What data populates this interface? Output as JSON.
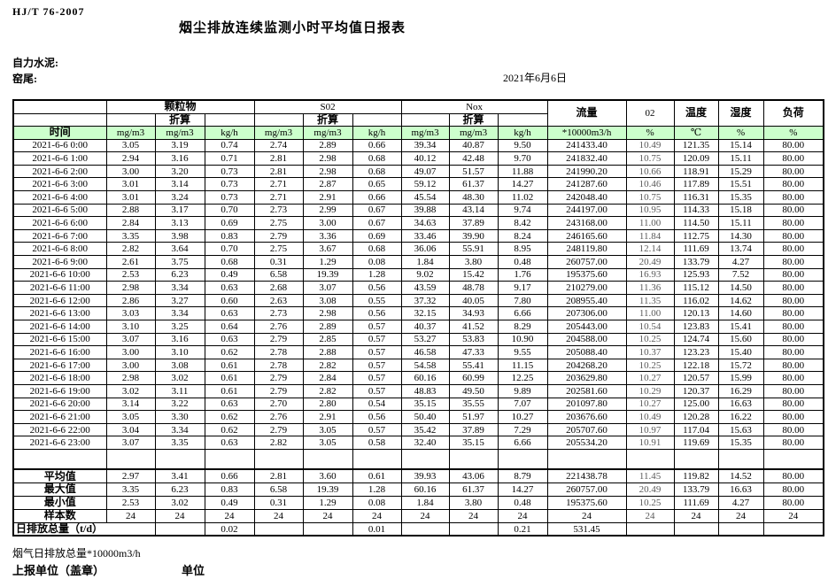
{
  "report": {
    "standard_code": "HJ/T 76-2007",
    "title": "烟尘排放连续监测小时平均值日报表",
    "company_label": "自力水泥:",
    "site_label": "窑尾:",
    "date": "2021年6月6日",
    "flue_gas_total_note": "烟气日排放总量*10000m3/h",
    "report_unit_label": "上报单位（盖章）",
    "unit_label": "单位"
  },
  "colors": {
    "header_green": "#ccffcc"
  },
  "table": {
    "time_header": "时间",
    "conversion_label": "折算",
    "group_headers": {
      "particulate": "颗粒物",
      "so2": "S02",
      "nox": "Nox",
      "flow": "流量",
      "o2": "02",
      "temperature": "温度",
      "humidity": "湿度",
      "load": "负荷"
    },
    "units": [
      "mg/m3",
      "mg/m3",
      "kg/h",
      "mg/m3",
      "mg/m3",
      "kg/h",
      "mg/m3",
      "mg/m3",
      "kg/h",
      "*10000m3/h",
      "%",
      "℃",
      "%",
      "%"
    ],
    "data_rows": [
      {
        "time": "2021-6-6 0:00",
        "values": [
          "3.05",
          "3.19",
          "0.74",
          "2.74",
          "2.89",
          "0.66",
          "39.34",
          "40.87",
          "9.50",
          "241433.40",
          "10.49",
          "121.35",
          "15.14",
          "80.00"
        ]
      },
      {
        "time": "2021-6-6 1:00",
        "values": [
          "2.94",
          "3.16",
          "0.71",
          "2.81",
          "2.98",
          "0.68",
          "40.12",
          "42.48",
          "9.70",
          "241832.40",
          "10.75",
          "120.09",
          "15.11",
          "80.00"
        ]
      },
      {
        "time": "2021-6-6 2:00",
        "values": [
          "3.00",
          "3.20",
          "0.73",
          "2.81",
          "2.98",
          "0.68",
          "49.07",
          "51.57",
          "11.88",
          "241990.20",
          "10.66",
          "118.91",
          "15.29",
          "80.00"
        ]
      },
      {
        "time": "2021-6-6 3:00",
        "values": [
          "3.01",
          "3.14",
          "0.73",
          "2.71",
          "2.87",
          "0.65",
          "59.12",
          "61.37",
          "14.27",
          "241287.60",
          "10.46",
          "117.89",
          "15.51",
          "80.00"
        ]
      },
      {
        "time": "2021-6-6 4:00",
        "values": [
          "3.01",
          "3.24",
          "0.73",
          "2.71",
          "2.91",
          "0.66",
          "45.54",
          "48.30",
          "11.02",
          "242048.40",
          "10.75",
          "116.31",
          "15.35",
          "80.00"
        ]
      },
      {
        "time": "2021-6-6 5:00",
        "values": [
          "2.88",
          "3.17",
          "0.70",
          "2.73",
          "2.99",
          "0.67",
          "39.88",
          "43.14",
          "9.74",
          "244197.00",
          "10.95",
          "114.33",
          "15.18",
          "80.00"
        ]
      },
      {
        "time": "2021-6-6 6:00",
        "values": [
          "2.84",
          "3.13",
          "0.69",
          "2.75",
          "3.00",
          "0.67",
          "34.63",
          "37.89",
          "8.42",
          "243168.00",
          "11.00",
          "114.50",
          "15.11",
          "80.00"
        ]
      },
      {
        "time": "2021-6-6 7:00",
        "values": [
          "3.35",
          "3.98",
          "0.83",
          "2.79",
          "3.36",
          "0.69",
          "33.46",
          "39.90",
          "8.24",
          "246165.60",
          "11.84",
          "112.75",
          "14.30",
          "80.00"
        ]
      },
      {
        "time": "2021-6-6 8:00",
        "values": [
          "2.82",
          "3.64",
          "0.70",
          "2.75",
          "3.67",
          "0.68",
          "36.06",
          "55.91",
          "8.95",
          "248119.80",
          "12.14",
          "111.69",
          "13.74",
          "80.00"
        ]
      },
      {
        "time": "2021-6-6 9:00",
        "values": [
          "2.61",
          "3.75",
          "0.68",
          "0.31",
          "1.29",
          "0.08",
          "1.84",
          "3.80",
          "0.48",
          "260757.00",
          "20.49",
          "133.79",
          "4.27",
          "80.00"
        ]
      },
      {
        "time": "2021-6-6 10:00",
        "values": [
          "2.53",
          "6.23",
          "0.49",
          "6.58",
          "19.39",
          "1.28",
          "9.02",
          "15.42",
          "1.76",
          "195375.60",
          "16.93",
          "125.93",
          "7.52",
          "80.00"
        ]
      },
      {
        "time": "2021-6-6 11:00",
        "values": [
          "2.98",
          "3.34",
          "0.63",
          "2.68",
          "3.07",
          "0.56",
          "43.59",
          "48.78",
          "9.17",
          "210279.00",
          "11.36",
          "115.12",
          "14.50",
          "80.00"
        ]
      },
      {
        "time": "2021-6-6 12:00",
        "values": [
          "2.86",
          "3.27",
          "0.60",
          "2.63",
          "3.08",
          "0.55",
          "37.32",
          "40.05",
          "7.80",
          "208955.40",
          "11.35",
          "116.02",
          "14.62",
          "80.00"
        ]
      },
      {
        "time": "2021-6-6 13:00",
        "values": [
          "3.03",
          "3.34",
          "0.63",
          "2.73",
          "2.98",
          "0.56",
          "32.15",
          "34.93",
          "6.66",
          "207306.00",
          "11.00",
          "120.13",
          "14.60",
          "80.00"
        ]
      },
      {
        "time": "2021-6-6 14:00",
        "values": [
          "3.10",
          "3.25",
          "0.64",
          "2.76",
          "2.89",
          "0.57",
          "40.37",
          "41.52",
          "8.29",
          "205443.00",
          "10.54",
          "123.83",
          "15.41",
          "80.00"
        ]
      },
      {
        "time": "2021-6-6 15:00",
        "values": [
          "3.07",
          "3.16",
          "0.63",
          "2.79",
          "2.85",
          "0.57",
          "53.27",
          "53.83",
          "10.90",
          "204588.00",
          "10.25",
          "124.74",
          "15.60",
          "80.00"
        ]
      },
      {
        "time": "2021-6-6 16:00",
        "values": [
          "3.00",
          "3.10",
          "0.62",
          "2.78",
          "2.88",
          "0.57",
          "46.58",
          "47.33",
          "9.55",
          "205088.40",
          "10.37",
          "123.23",
          "15.40",
          "80.00"
        ]
      },
      {
        "time": "2021-6-6 17:00",
        "values": [
          "3.00",
          "3.08",
          "0.61",
          "2.78",
          "2.82",
          "0.57",
          "54.58",
          "55.41",
          "11.15",
          "204268.20",
          "10.25",
          "122.18",
          "15.72",
          "80.00"
        ]
      },
      {
        "time": "2021-6-6 18:00",
        "values": [
          "2.98",
          "3.02",
          "0.61",
          "2.79",
          "2.84",
          "0.57",
          "60.16",
          "60.99",
          "12.25",
          "203629.80",
          "10.27",
          "120.57",
          "15.99",
          "80.00"
        ]
      },
      {
        "time": "2021-6-6 19:00",
        "values": [
          "3.02",
          "3.11",
          "0.61",
          "2.79",
          "2.82",
          "0.57",
          "48.83",
          "49.50",
          "9.89",
          "202581.60",
          "10.29",
          "120.37",
          "16.29",
          "80.00"
        ]
      },
      {
        "time": "2021-6-6 20:00",
        "values": [
          "3.14",
          "3.22",
          "0.63",
          "2.70",
          "2.80",
          "0.54",
          "35.15",
          "35.55",
          "7.07",
          "201097.80",
          "10.27",
          "125.00",
          "16.63",
          "80.00"
        ]
      },
      {
        "time": "2021-6-6 21:00",
        "values": [
          "3.05",
          "3.30",
          "0.62",
          "2.76",
          "2.91",
          "0.56",
          "50.40",
          "51.97",
          "10.27",
          "203676.60",
          "10.49",
          "120.28",
          "16.22",
          "80.00"
        ]
      },
      {
        "time": "2021-6-6 22:00",
        "values": [
          "3.04",
          "3.34",
          "0.62",
          "2.79",
          "3.05",
          "0.57",
          "35.42",
          "37.89",
          "7.29",
          "205707.60",
          "10.97",
          "117.04",
          "15.63",
          "80.00"
        ]
      },
      {
        "time": "2021-6-6 23:00",
        "values": [
          "3.07",
          "3.35",
          "0.63",
          "2.82",
          "3.05",
          "0.58",
          "32.40",
          "35.15",
          "6.66",
          "205534.20",
          "10.91",
          "119.69",
          "15.35",
          "80.00"
        ]
      }
    ],
    "summary_rows": [
      {
        "label": "平均值",
        "values": [
          "2.97",
          "3.41",
          "0.66",
          "2.81",
          "3.60",
          "0.61",
          "39.93",
          "43.06",
          "8.79",
          "221438.78",
          "11.45",
          "119.82",
          "14.52",
          "80.00"
        ]
      },
      {
        "label": "最大值",
        "values": [
          "3.35",
          "6.23",
          "0.83",
          "6.58",
          "19.39",
          "1.28",
          "60.16",
          "61.37",
          "14.27",
          "260757.00",
          "20.49",
          "133.79",
          "16.63",
          "80.00"
        ]
      },
      {
        "label": "最小值",
        "values": [
          "2.53",
          "3.02",
          "0.49",
          "0.31",
          "1.29",
          "0.08",
          "1.84",
          "3.80",
          "0.48",
          "195375.60",
          "10.25",
          "111.69",
          "4.27",
          "80.00"
        ]
      },
      {
        "label": "样本数",
        "values": [
          "24",
          "24",
          "24",
          "24",
          "24",
          "24",
          "24",
          "24",
          "24",
          "24",
          "24",
          "24",
          "24",
          "24"
        ]
      }
    ],
    "total_row": {
      "label": "日排放总量（t/d）",
      "cells": [
        "",
        "0.02",
        "",
        "",
        "0.01",
        "",
        "",
        "0.21",
        "531.45",
        "",
        "",
        "",
        ""
      ]
    }
  }
}
